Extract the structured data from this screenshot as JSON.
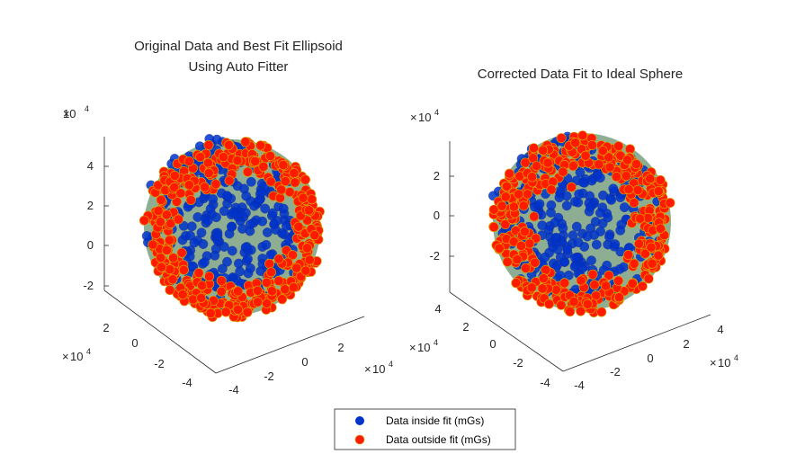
{
  "chart_data": [
    {
      "type": "scatter",
      "title_lines": [
        "Original Data and Best Fit Ellipsoid",
        "Using Auto Fitter"
      ],
      "axis_exponent": "10",
      "axis_exponent_power": "4",
      "x_ticks": [
        "-4",
        "-2",
        "0",
        "2"
      ],
      "y_ticks": [
        "2",
        "0",
        "-2",
        "-4"
      ],
      "z_ticks": [
        "4",
        "2",
        "0",
        "-2"
      ],
      "xlim": [
        -4.5,
        4.0
      ],
      "ylim": [
        -4.5,
        3.0
      ],
      "zlim": [
        -3.0,
        5.5
      ],
      "surface": "best fit ellipsoid",
      "series": [
        {
          "name": "Data inside fit (mGs)",
          "color": "#0033cc",
          "marker": "circle",
          "count_estimate": 300
        },
        {
          "name": "Data outside fit (mGs)",
          "color": "#ff1a00",
          "marker": "circle",
          "count_estimate": 420
        }
      ],
      "grid": false
    },
    {
      "type": "scatter",
      "title_lines": [
        "Corrected Data Fit to Ideal Sphere"
      ],
      "axis_exponent": "10",
      "axis_exponent_power": "4",
      "x_ticks": [
        "-4",
        "-2",
        "0",
        "2",
        "4"
      ],
      "y_ticks": [
        "4",
        "2",
        "0",
        "-2",
        "-4"
      ],
      "z_ticks": [
        "2",
        "0",
        "-2"
      ],
      "xlim": [
        -4.5,
        4.5
      ],
      "ylim": [
        -4.5,
        4.5
      ],
      "zlim": [
        -3.5,
        3.5
      ],
      "surface": "ideal sphere",
      "series": [
        {
          "name": "Data inside fit (mGs)",
          "color": "#0033cc",
          "marker": "circle",
          "count_estimate": 300
        },
        {
          "name": "Data outside fit (mGs)",
          "color": "#ff1a00",
          "marker": "circle",
          "count_estimate": 420
        }
      ],
      "grid": false
    }
  ],
  "legend": {
    "placement": "bottom-center",
    "entries": [
      {
        "label": "Data inside fit (mGs)",
        "color": "#0033cc"
      },
      {
        "label": "Data outside fit (mGs)",
        "color": "#ff1a00"
      }
    ]
  },
  "colors": {
    "inside": "#0033cc",
    "outside": "#ff1a00",
    "outside_edge": "#d4aa00",
    "surface": "#2f6b3a",
    "axis": "#262626"
  }
}
